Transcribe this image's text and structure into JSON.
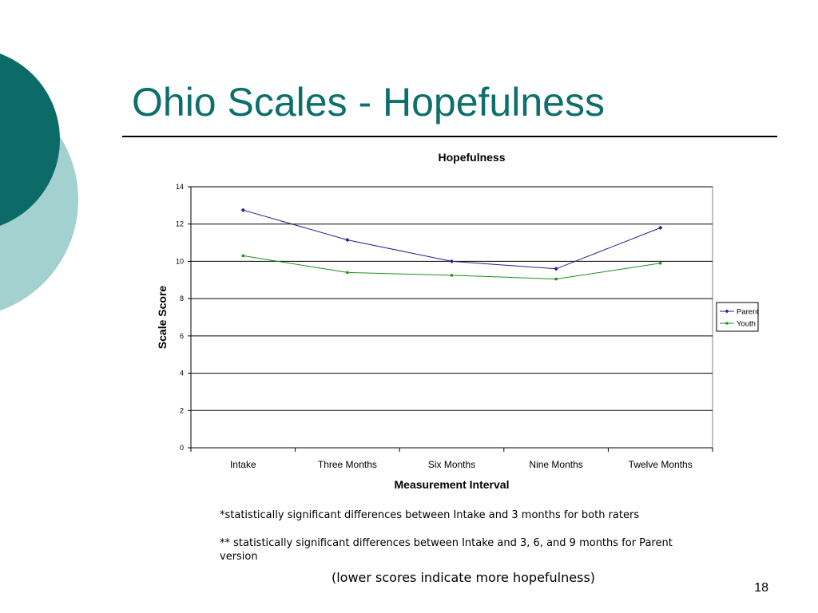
{
  "slide": {
    "title": "Ohio Scales - Hopefulness",
    "note1": "*statistically significant differences between Intake and 3 months for both raters",
    "note2": "** statistically significant differences between Intake and 3, 6, and 9 months for Parent version",
    "caption": "(lower scores indicate more hopefulness)",
    "page_number": "18"
  },
  "colors": {
    "deco_dark": "#0d6b67",
    "deco_light": "#a3d1d0",
    "title": "#0d6f6b",
    "parent": "#1f1f8f",
    "youth": "#1e8e1e"
  },
  "chart_data": {
    "type": "line",
    "title": "Hopefulness",
    "xlabel": "Measurement Interval",
    "ylabel": "Scale Score",
    "categories": [
      "Intake",
      "Three Months",
      "Six Months",
      "Nine Months",
      "Twelve Months"
    ],
    "ylim": [
      0,
      14
    ],
    "yticks": [
      0,
      2,
      4,
      6,
      8,
      10,
      12,
      14
    ],
    "grid": true,
    "legend": "right",
    "series": [
      {
        "name": "Parent",
        "values": [
          12.75,
          11.15,
          10.0,
          9.6,
          11.8
        ],
        "color": "#1f1f8f",
        "marker": "diamond"
      },
      {
        "name": "Youth",
        "values": [
          10.3,
          9.4,
          9.25,
          9.05,
          9.9
        ],
        "color": "#1e8e1e",
        "marker": "square"
      }
    ]
  }
}
